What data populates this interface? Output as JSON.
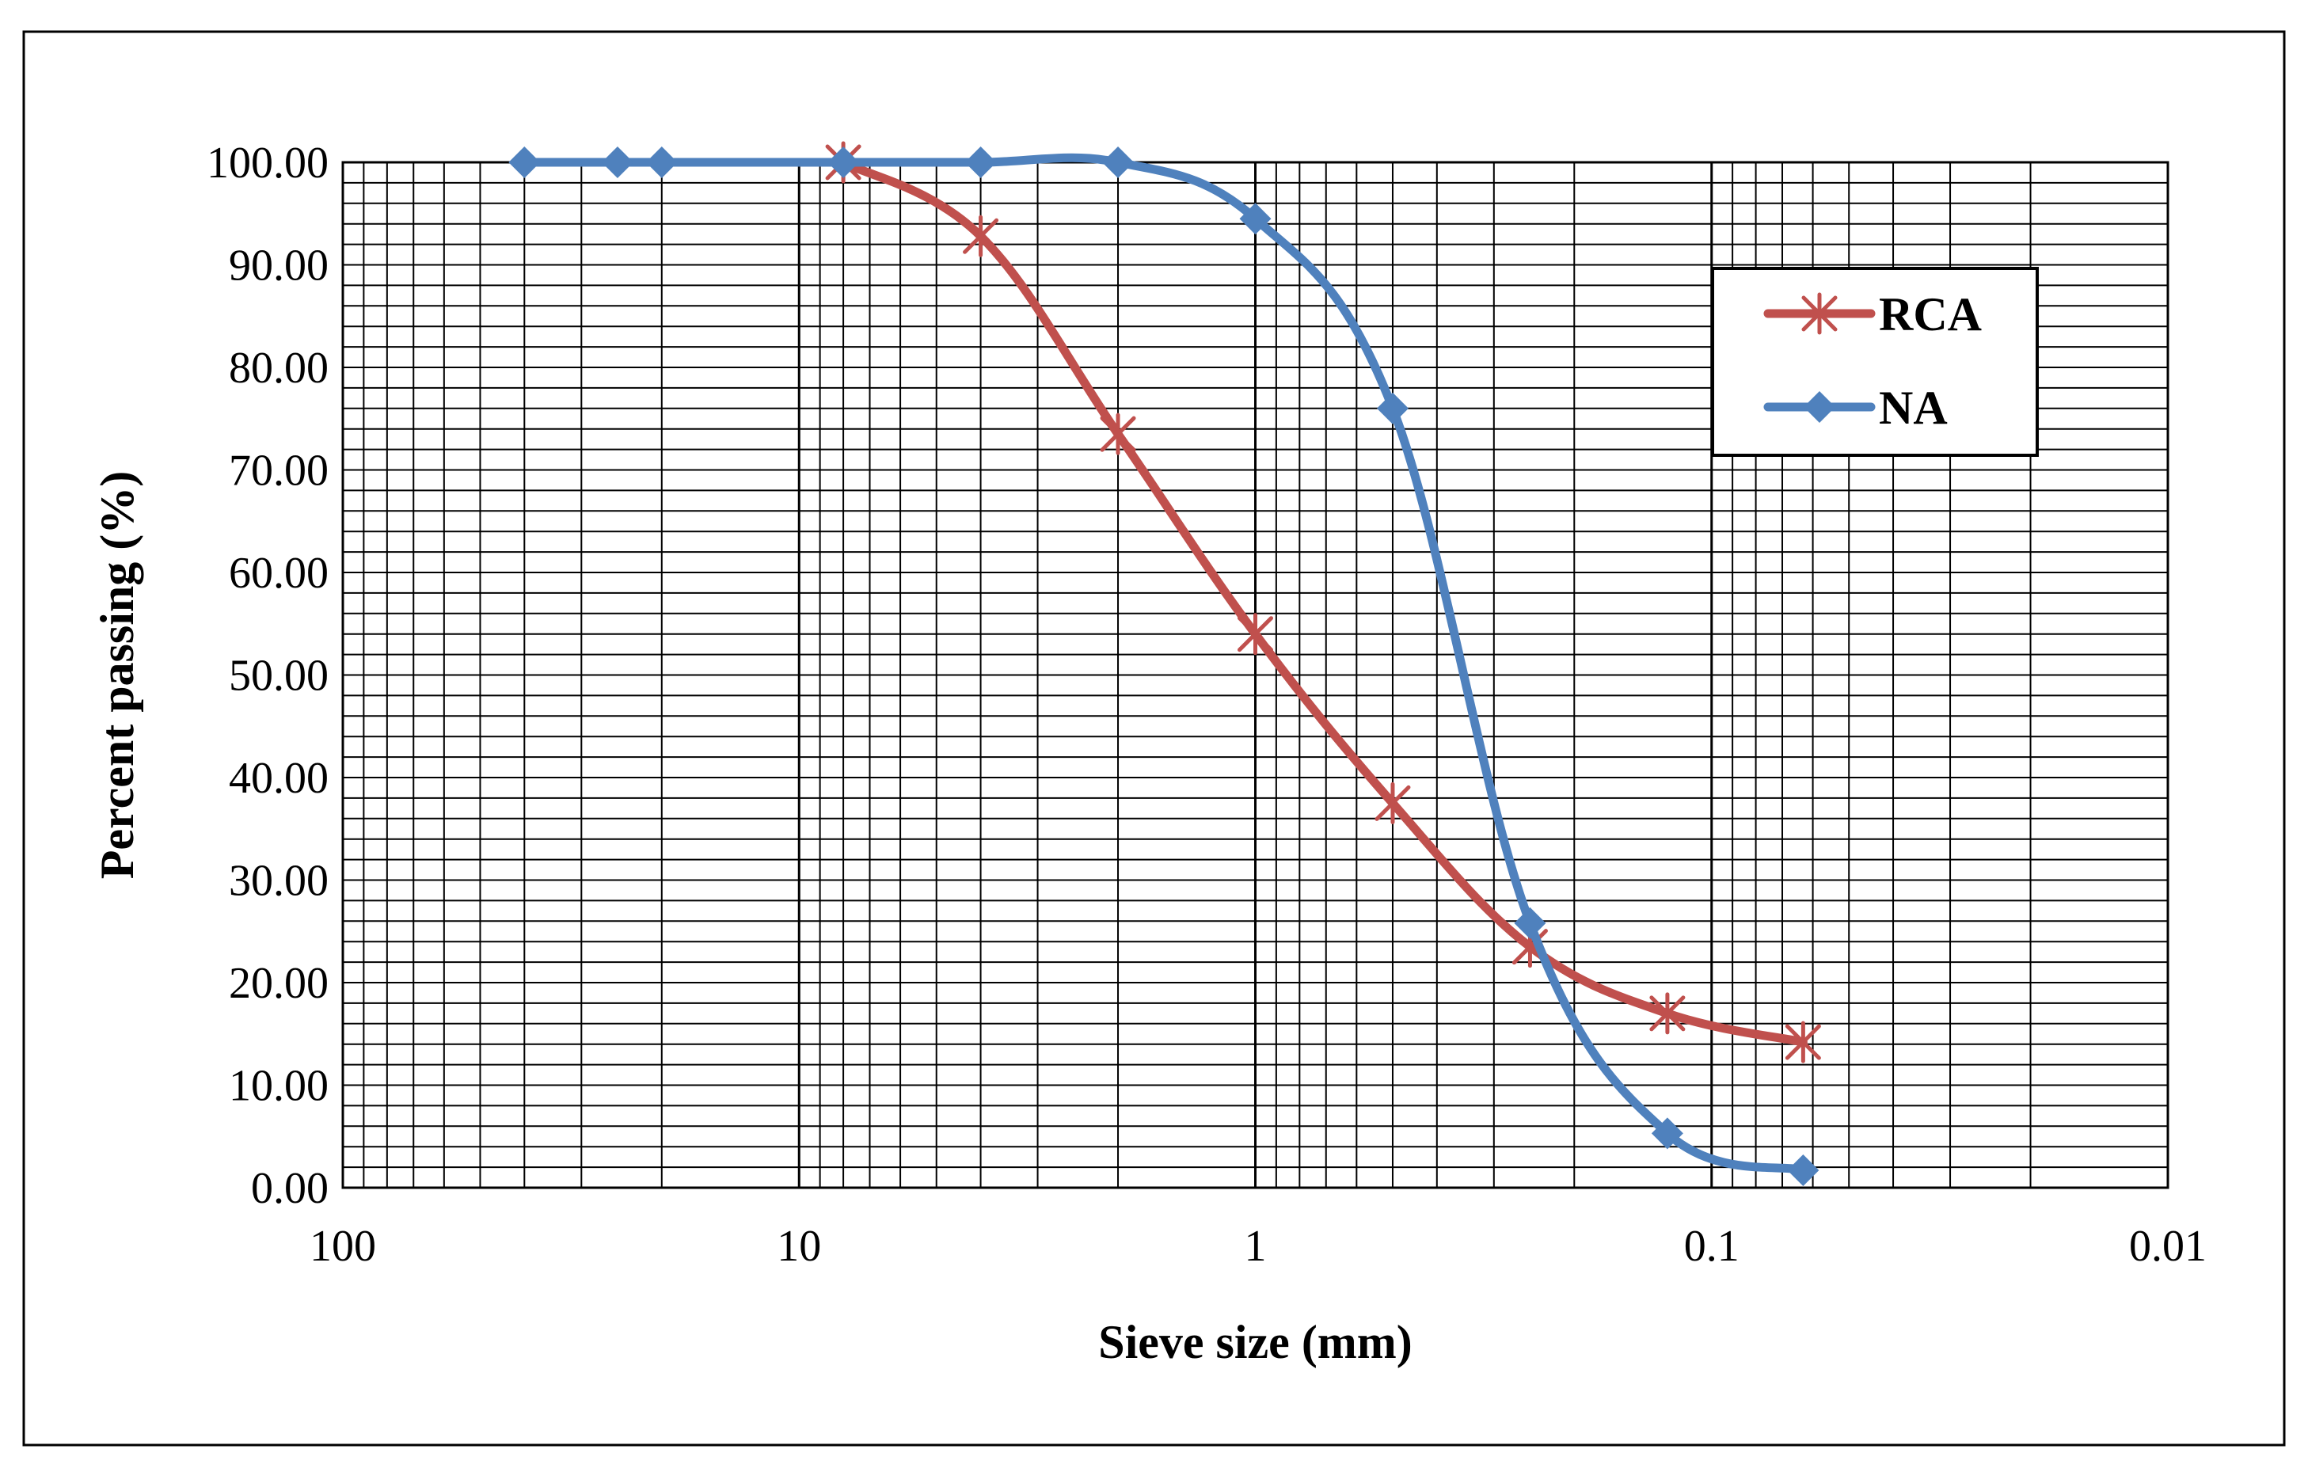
{
  "chart_data": {
    "type": "line",
    "xlabel": "Sieve size (mm)",
    "ylabel": "Percent passing (%)",
    "x_scale": "log",
    "x_reversed": true,
    "xlim": [
      100,
      0.01
    ],
    "ylim": [
      0,
      100
    ],
    "x_ticks": [
      "100",
      "10",
      "1",
      "0.1",
      "0.01"
    ],
    "y_ticks": [
      "0.00",
      "10.00",
      "20.00",
      "30.00",
      "40.00",
      "50.00",
      "60.00",
      "70.00",
      "80.00",
      "90.00",
      "100.00"
    ],
    "grid": true,
    "legend_position": "top-right",
    "series": [
      {
        "name": "RCA",
        "color": "#c0504d",
        "marker": "star",
        "x": [
          8,
          4,
          2,
          1,
          0.5,
          0.25,
          0.125,
          0.063
        ],
        "y": [
          100,
          92.8,
          73.5,
          54.0,
          37.5,
          23.5,
          17.0,
          14.2
        ]
      },
      {
        "name": "NA",
        "color": "#4f81bd",
        "marker": "diamond",
        "x": [
          40,
          25,
          20,
          8,
          4,
          2,
          1,
          0.5,
          0.25,
          0.125,
          0.063
        ],
        "y": [
          100,
          100,
          100,
          100,
          100,
          100,
          94.5,
          76.0,
          25.8,
          5.3,
          1.7
        ]
      }
    ]
  }
}
